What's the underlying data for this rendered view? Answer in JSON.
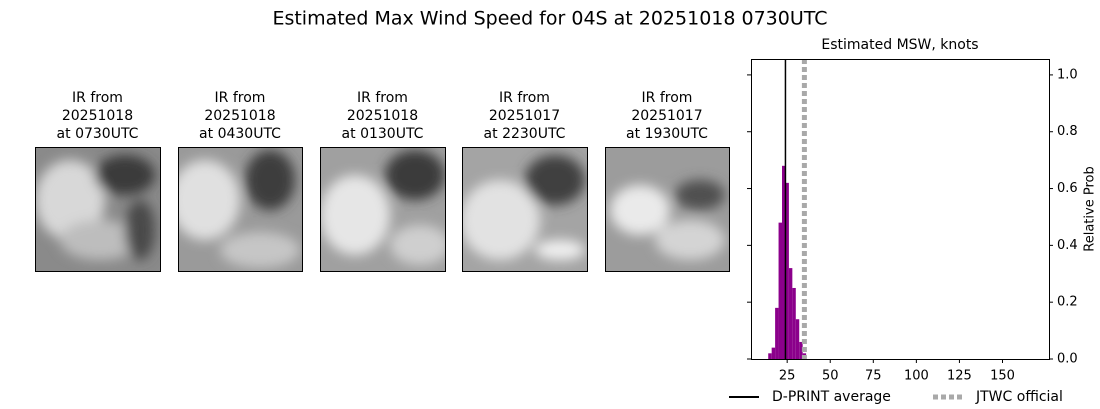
{
  "title": "Estimated Max Wind Speed for 04S at 20251018 0730UTC",
  "panels": [
    {
      "lines": [
        "IR from",
        "20251018",
        "at 0730UTC"
      ]
    },
    {
      "lines": [
        "IR from",
        "20251018",
        "at 0430UTC"
      ]
    },
    {
      "lines": [
        "IR from",
        "20251018",
        "at 0130UTC"
      ]
    },
    {
      "lines": [
        "IR from",
        "20251017",
        "at 2230UTC"
      ]
    },
    {
      "lines": [
        "IR from",
        "20251017",
        "at 1930UTC"
      ]
    }
  ],
  "chart_data": {
    "type": "histogram",
    "title": "Estimated MSW, knots",
    "y_label": "Relative Prob",
    "bins": [
      14,
      16,
      18,
      20,
      22,
      24,
      26,
      28,
      30,
      32,
      34,
      36
    ],
    "values": [
      0.02,
      0.04,
      0.18,
      0.48,
      0.68,
      0.62,
      0.32,
      0.25,
      0.14,
      0.06,
      0.02
    ],
    "color": "#8b008b",
    "reference_lines": [
      {
        "name": "D-PRINT average",
        "value": 24,
        "color": "#000000",
        "style": "solid"
      },
      {
        "name": "JTWC official",
        "value": 35,
        "color": "#a9a9a9",
        "style": "dotted"
      }
    ],
    "xlim": [
      4,
      177
    ],
    "xticks": [
      25,
      50,
      75,
      100,
      125,
      150
    ],
    "ylim": [
      0,
      1.056
    ],
    "yticks": [
      {
        "value": 0,
        "label": "0.0"
      },
      0.2,
      0.4,
      0.6,
      0.8,
      {
        "value": 1,
        "label": "1.0"
      }
    ],
    "legend": "bottom"
  }
}
